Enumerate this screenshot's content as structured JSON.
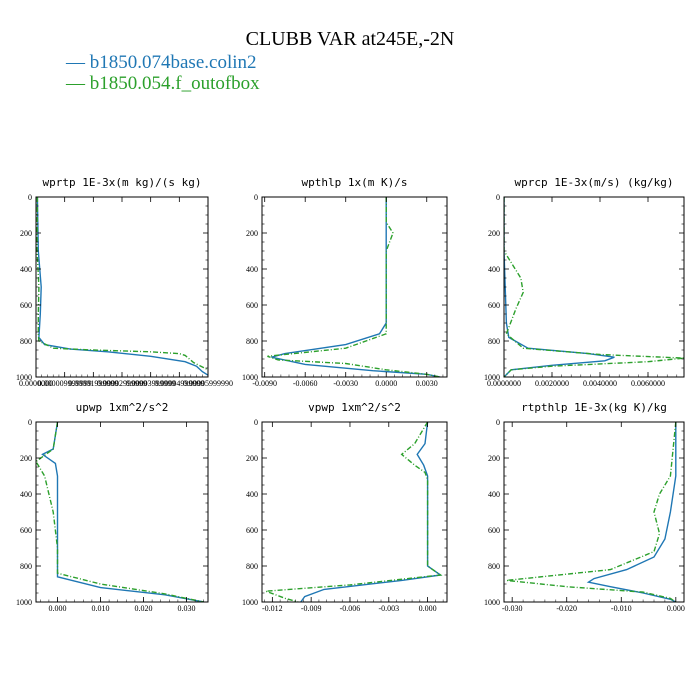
{
  "figure": {
    "title": "CLUBB VAR at245E,-2N",
    "legend": [
      {
        "label": "b1850.074base.colin2",
        "color": "#1f77b4",
        "style": "solid"
      },
      {
        "label": "b1850.054.f_outofbox",
        "color": "#2ca02c",
        "style": "dashed"
      }
    ]
  },
  "chart_data": [
    {
      "type": "line",
      "title": "wprtp  1E-3x(m kg)/(s kg)",
      "xlim": [
        0.0,
        6e-05
      ],
      "ylim": [
        1000,
        0
      ],
      "y_ticks": [
        0,
        200,
        400,
        600,
        800,
        1000
      ],
      "x_tick_labels": [
        "0.0000000",
        "0.000009999999",
        "0.00001999999",
        "0.00002999999",
        "0.00003999999",
        "0.00004999999",
        "0.00005999990"
      ],
      "x_tick_values": [
        0.0,
        1e-05,
        2e-05,
        3e-05,
        4e-05,
        5e-05,
        6e-05
      ],
      "series": [
        {
          "name": "b1850.074base.colin2",
          "color": "#1f77b4",
          "dashed": false,
          "points": [
            [
              5e-07,
              0
            ],
            [
              8e-07,
              300
            ],
            [
              1.8e-06,
              500
            ],
            [
              1.5e-06,
              650
            ],
            [
              1e-06,
              780
            ],
            [
              3e-06,
              820
            ],
            [
              1.2e-05,
              845
            ],
            [
              2.5e-05,
              860
            ],
            [
              4e-05,
              885
            ],
            [
              5.2e-05,
              915
            ],
            [
              5.6e-05,
              940
            ],
            [
              5.8e-05,
              970
            ],
            [
              6e-05,
              990
            ]
          ]
        },
        {
          "name": "b1850.054.f_outofbox",
          "color": "#2ca02c",
          "dashed": true,
          "points": [
            [
              5e-07,
              0
            ],
            [
              4e-07,
              300
            ],
            [
              1e-06,
              500
            ],
            [
              8e-07,
              650
            ],
            [
              8e-07,
              760
            ],
            [
              1e-06,
              800
            ],
            [
              6e-06,
              840
            ],
            [
              2e-05,
              850
            ],
            [
              4e-05,
              860
            ],
            [
              5e-05,
              870
            ],
            [
              5.2e-05,
              880
            ],
            [
              5.5e-05,
              920
            ],
            [
              6e-05,
              960
            ]
          ]
        }
      ]
    },
    {
      "type": "line",
      "title": "wpthlp  1x(m K)/s",
      "xlim": [
        -0.0092,
        0.0045
      ],
      "ylim": [
        1000,
        0
      ],
      "y_ticks": [
        0,
        200,
        400,
        600,
        800,
        1000
      ],
      "x_tick_labels": [
        "-0.0090",
        "-0.0060",
        "-0.0030",
        "0.0000",
        "0.0030"
      ],
      "x_tick_values": [
        -0.009,
        -0.006,
        -0.003,
        0.0,
        0.003
      ],
      "series": [
        {
          "name": "b1850.074base.colin2",
          "color": "#1f77b4",
          "dashed": false,
          "points": [
            [
              0.0,
              0
            ],
            [
              0.0,
              140
            ],
            [
              0.0,
              200
            ],
            [
              0.0,
              300
            ],
            [
              0.0,
              400
            ],
            [
              0.0,
              600
            ],
            [
              0.0,
              700
            ],
            [
              -0.0005,
              760
            ],
            [
              -0.003,
              820
            ],
            [
              -0.0075,
              870
            ],
            [
              -0.0085,
              890
            ],
            [
              -0.006,
              930
            ],
            [
              -0.001,
              965
            ],
            [
              0.003,
              985
            ],
            [
              0.004,
              1000
            ]
          ]
        },
        {
          "name": "b1850.054.f_outofbox",
          "color": "#2ca02c",
          "dashed": true,
          "points": [
            [
              0.0,
              0
            ],
            [
              0.0,
              140
            ],
            [
              0.0005,
              200
            ],
            [
              0.0,
              300
            ],
            [
              0.0,
              400
            ],
            [
              0.0,
              600
            ],
            [
              0.0,
              700
            ],
            [
              0.0,
              760
            ],
            [
              -0.003,
              840
            ],
            [
              -0.0088,
              885
            ],
            [
              -0.008,
              905
            ],
            [
              -0.003,
              925
            ],
            [
              0.0,
              960
            ],
            [
              0.003,
              985
            ],
            [
              0.004,
              1000
            ]
          ]
        }
      ]
    },
    {
      "type": "line",
      "title": "wprcp  1E-3x(m/s) (kg/kg)",
      "xlim": [
        0.0,
        0.0075
      ],
      "ylim": [
        1000,
        0
      ],
      "y_ticks": [
        0,
        200,
        400,
        600,
        800,
        1000
      ],
      "x_tick_labels": [
        "0.0000000",
        "0.0020000",
        "0.0040000",
        "0.0060000"
      ],
      "x_tick_values": [
        0.0,
        0.002,
        0.004,
        0.006
      ],
      "series": [
        {
          "name": "b1850.074base.colin2",
          "color": "#1f77b4",
          "dashed": false,
          "points": [
            [
              0.0,
              0
            ],
            [
              0.0,
              300
            ],
            [
              5e-05,
              500
            ],
            [
              0.0001,
              700
            ],
            [
              0.0002,
              780
            ],
            [
              0.001,
              840
            ],
            [
              0.0035,
              870
            ],
            [
              0.0046,
              890
            ],
            [
              0.0042,
              910
            ],
            [
              0.002,
              935
            ],
            [
              0.0003,
              960
            ],
            [
              0.0,
              1000
            ]
          ]
        },
        {
          "name": "b1850.054.f_outofbox",
          "color": "#2ca02c",
          "dashed": true,
          "points": [
            [
              0.0,
              0
            ],
            [
              0.0,
              300
            ],
            [
              0.0007,
              450
            ],
            [
              0.0008,
              530
            ],
            [
              0.0005,
              620
            ],
            [
              0.0001,
              760
            ],
            [
              0.0008,
              840
            ],
            [
              0.004,
              875
            ],
            [
              0.0075,
              895
            ],
            [
              0.006,
              915
            ],
            [
              0.002,
              940
            ],
            [
              0.0003,
              960
            ],
            [
              0.0,
              1000
            ]
          ]
        }
      ]
    },
    {
      "type": "line",
      "title": "upwp  1xm^2/s^2",
      "xlim": [
        -0.005,
        0.035
      ],
      "ylim": [
        1000,
        0
      ],
      "y_ticks": [
        0,
        200,
        400,
        600,
        800,
        1000
      ],
      "x_tick_labels": [
        "0.000",
        "0.010",
        "0.020",
        "0.030"
      ],
      "x_tick_values": [
        0.0,
        0.01,
        0.02,
        0.03
      ],
      "series": [
        {
          "name": "b1850.074base.colin2",
          "color": "#1f77b4",
          "dashed": false,
          "points": [
            [
              0.0,
              0
            ],
            [
              -0.001,
              150
            ],
            [
              -0.0035,
              180
            ],
            [
              -0.0005,
              230
            ],
            [
              0.0,
              300
            ],
            [
              0.0,
              500
            ],
            [
              0.0,
              700
            ],
            [
              0.0,
              860
            ],
            [
              0.01,
              920
            ],
            [
              0.025,
              960
            ],
            [
              0.034,
              1000
            ]
          ]
        },
        {
          "name": "b1850.054.f_outofbox",
          "color": "#2ca02c",
          "dashed": true,
          "points": [
            [
              0.0,
              0
            ],
            [
              -0.001,
              150
            ],
            [
              -0.005,
              220
            ],
            [
              -0.003,
              300
            ],
            [
              -0.002,
              400
            ],
            [
              -0.001,
              500
            ],
            [
              0.0,
              700
            ],
            [
              0.0,
              840
            ],
            [
              0.01,
              900
            ],
            [
              0.025,
              955
            ],
            [
              0.034,
              1000
            ]
          ]
        }
      ]
    },
    {
      "type": "line",
      "title": "vpwp  1xm^2/s^2",
      "xlim": [
        -0.0128,
        0.0015
      ],
      "ylim": [
        1000,
        0
      ],
      "y_ticks": [
        0,
        200,
        400,
        600,
        800,
        1000
      ],
      "x_tick_labels": [
        "-0.012",
        "-0.009",
        "-0.006",
        "-0.003",
        "0.000"
      ],
      "x_tick_values": [
        -0.012,
        -0.009,
        -0.006,
        -0.003,
        0.0
      ],
      "series": [
        {
          "name": "b1850.074base.colin2",
          "color": "#1f77b4",
          "dashed": false,
          "points": [
            [
              0.0,
              0
            ],
            [
              -0.0002,
              120
            ],
            [
              -0.0008,
              180
            ],
            [
              -0.0003,
              240
            ],
            [
              0.0,
              300
            ],
            [
              0.0,
              500
            ],
            [
              0.0,
              700
            ],
            [
              0.0,
              800
            ],
            [
              0.001,
              850
            ],
            [
              -0.002,
              880
            ],
            [
              -0.008,
              930
            ],
            [
              -0.0095,
              970
            ],
            [
              -0.0098,
              1000
            ]
          ]
        },
        {
          "name": "b1850.054.f_outofbox",
          "color": "#2ca02c",
          "dashed": true,
          "points": [
            [
              0.0,
              0
            ],
            [
              -0.001,
              120
            ],
            [
              -0.002,
              180
            ],
            [
              -0.001,
              240
            ],
            [
              -0.0002,
              280
            ],
            [
              0.0,
              320
            ],
            [
              0.0,
              450
            ],
            [
              0.0,
              600
            ],
            [
              0.0,
              800
            ],
            [
              0.001,
              850
            ],
            [
              -0.006,
              905
            ],
            [
              -0.0125,
              940
            ],
            [
              -0.011,
              980
            ],
            [
              -0.01,
              1000
            ]
          ]
        }
      ]
    },
    {
      "type": "line",
      "title": "rtpthlp  1E-3x(kg K)/kg",
      "xlim": [
        -0.0315,
        0.0015
      ],
      "ylim": [
        1000,
        0
      ],
      "y_ticks": [
        0,
        200,
        400,
        600,
        800,
        1000
      ],
      "x_tick_labels": [
        "-0.030",
        "-0.020",
        "-0.010",
        "0.000"
      ],
      "x_tick_values": [
        -0.03,
        -0.02,
        -0.01,
        0.0
      ],
      "series": [
        {
          "name": "b1850.074base.colin2",
          "color": "#1f77b4",
          "dashed": false,
          "points": [
            [
              0.0,
              0
            ],
            [
              0.0,
              300
            ],
            [
              -0.001,
              500
            ],
            [
              -0.002,
              650
            ],
            [
              -0.004,
              750
            ],
            [
              -0.009,
              820
            ],
            [
              -0.015,
              870
            ],
            [
              -0.016,
              890
            ],
            [
              -0.012,
              915
            ],
            [
              -0.006,
              950
            ],
            [
              -0.001,
              985
            ],
            [
              0.0,
              1000
            ]
          ]
        },
        {
          "name": "b1850.054.f_outofbox",
          "color": "#2ca02c",
          "dashed": true,
          "points": [
            [
              0.0,
              0
            ],
            [
              -0.001,
              300
            ],
            [
              -0.003,
              400
            ],
            [
              -0.004,
              500
            ],
            [
              -0.003,
              620
            ],
            [
              -0.004,
              720
            ],
            [
              -0.012,
              820
            ],
            [
              -0.031,
              880
            ],
            [
              -0.02,
              915
            ],
            [
              -0.006,
              945
            ],
            [
              -0.001,
              980
            ],
            [
              0.0,
              1000
            ]
          ]
        }
      ]
    }
  ]
}
